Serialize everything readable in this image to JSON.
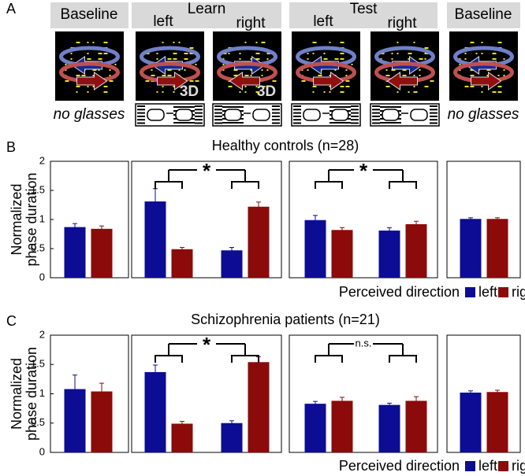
{
  "panel_a": {
    "label": "A",
    "headers": [
      "Baseline",
      "Learn",
      "left",
      "right",
      "Test",
      "left",
      "right",
      "Baseline"
    ],
    "badges": [
      "3D",
      "3D"
    ],
    "captions": [
      "no glasses",
      "no glasses"
    ]
  },
  "chart_data": [
    {
      "type": "bar",
      "label": "B",
      "title": "Healthy controls (n=28)",
      "ylabel_lines": [
        "Normalized",
        "phase duration"
      ],
      "categories": [
        null,
        null,
        null,
        null,
        null,
        null
      ],
      "series": [
        {
          "name": "left",
          "color": "#0c0c94",
          "values": [
            0.87,
            1.31,
            0.47,
            0.99,
            0.81,
            1.01
          ],
          "errors": [
            0.06,
            0.22,
            0.05,
            0.08,
            0.05,
            0.02
          ]
        },
        {
          "name": "right",
          "color": "#8b0a0a",
          "values": [
            0.84,
            0.49,
            1.22,
            0.82,
            0.92,
            1.01
          ],
          "errors": [
            0.05,
            0.03,
            0.08,
            0.04,
            0.05,
            0.02
          ]
        }
      ],
      "ylim": [
        0,
        2
      ],
      "yticks": [
        0,
        0.5,
        1,
        1.5,
        2
      ],
      "legend_title": "Perceived direction",
      "annotations": [
        "*",
        "*"
      ]
    },
    {
      "type": "bar",
      "label": "C",
      "title": "Schizophrenia patients (n=21)",
      "ylabel_lines": [
        "Normalized",
        "phase duration"
      ],
      "categories": [
        null,
        null,
        null,
        null,
        null,
        null
      ],
      "series": [
        {
          "name": "left",
          "color": "#0c0c94",
          "values": [
            1.08,
            1.37,
            0.5,
            0.83,
            0.81,
            1.02
          ],
          "errors": [
            0.24,
            0.12,
            0.04,
            0.04,
            0.03,
            0.03
          ]
        },
        {
          "name": "right",
          "color": "#8b0a0a",
          "values": [
            1.04,
            0.49,
            1.54,
            0.88,
            0.88,
            1.03
          ],
          "errors": [
            0.14,
            0.04,
            0.09,
            0.06,
            0.07,
            0.03
          ]
        }
      ],
      "ylim": [
        0,
        2
      ],
      "yticks": [
        0,
        0.5,
        1,
        1.5,
        2
      ],
      "legend_title": "Perceived direction",
      "annotations": [
        "*",
        "n.s."
      ]
    }
  ]
}
